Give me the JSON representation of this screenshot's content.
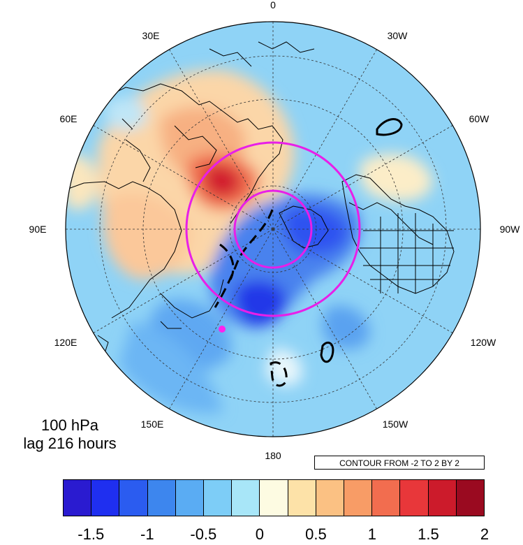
{
  "map": {
    "projection": "north-polar-stereographic",
    "longitude_labels": [
      "0",
      "30W",
      "60W",
      "90W",
      "120W",
      "150W",
      "180",
      "150E",
      "120E",
      "90E",
      "60E",
      "30E"
    ]
  },
  "level_label": "100 hPa",
  "lag_label": "lag 216 hours",
  "contour_note": "CONTOUR FROM -2 TO 2 BY 2",
  "colorbar": {
    "colors": [
      "#2a1bd0",
      "#1f2ff0",
      "#2b5cf0",
      "#3d86ee",
      "#5aacf3",
      "#7dcdf7",
      "#a8e6f8",
      "#fdfbe2",
      "#fde2a8",
      "#fbc183",
      "#f89c66",
      "#f26d4f",
      "#e8373a",
      "#cc1b2b",
      "#9a0a20"
    ],
    "tick_labels": [
      "-1.5",
      "-1",
      "-0.5",
      "0",
      "0.5",
      "1",
      "1.5",
      "2"
    ]
  },
  "colors": {
    "circle_magenta": "#e81fe8",
    "dot_magenta": "#ff22ee"
  }
}
